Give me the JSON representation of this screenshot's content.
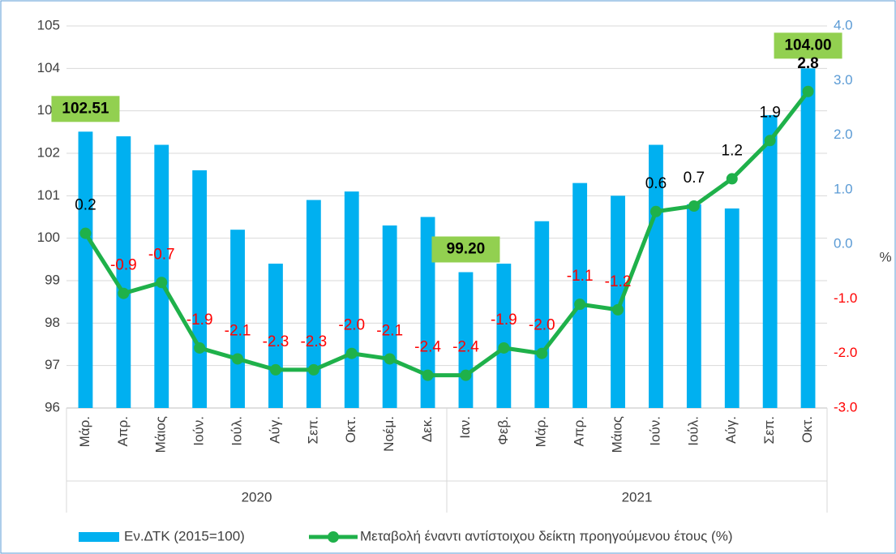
{
  "chart_data": {
    "type": "bar-line",
    "groups": [
      {
        "label": "2020",
        "categories": [
          "Μάρ.",
          "Απρ.",
          "Μάιος",
          "Ιούν.",
          "Ιούλ.",
          "Αύγ.",
          "Σεπ.",
          "Οκτ.",
          "Νοέμ.",
          "Δεκ."
        ]
      },
      {
        "label": "2021",
        "categories": [
          "Ιαν.",
          "Φεβ.",
          "Μάρ.",
          "Απρ.",
          "Μάιος",
          "Ιούν.",
          "Ιούλ.",
          "Αύγ.",
          "Σεπ.",
          "Οκτ."
        ]
      }
    ],
    "series": [
      {
        "name": "Εν.ΔΤΚ (2015=100)",
        "type": "bar",
        "color": "#00b0f0",
        "label_color": "#92d050",
        "values": [
          102.51,
          102.4,
          102.2,
          101.6,
          100.2,
          99.4,
          100.9,
          101.1,
          100.3,
          100.5,
          99.2,
          99.4,
          100.4,
          101.3,
          101.0,
          102.2,
          100.8,
          100.7,
          102.9,
          104.0
        ],
        "value_labels": [
          "102.51",
          null,
          null,
          null,
          null,
          null,
          null,
          null,
          null,
          null,
          "99.20",
          null,
          null,
          null,
          null,
          null,
          null,
          null,
          null,
          "104.00"
        ]
      },
      {
        "name": "Μεταβολή έναντι αντίστοιχου δείκτη προηγούμενου έτους (%)",
        "type": "line",
        "axis": "y2",
        "color": "#1fb14a",
        "values": [
          0.2,
          -0.9,
          -0.7,
          -1.9,
          -2.1,
          -2.3,
          -2.3,
          -2.0,
          -2.1,
          -2.4,
          -2.4,
          -1.9,
          -2.0,
          -1.1,
          -1.2,
          0.6,
          0.7,
          1.2,
          1.9,
          2.8
        ],
        "value_labels": [
          "0.2",
          "-0.9",
          "-0.7",
          "-1.9",
          "-2.1",
          "-2.3",
          "-2.3",
          "-2.0",
          "-2.1",
          "-2.4",
          "-2.4",
          "-1.9",
          "-2.0",
          "-1.1",
          "-1.2",
          "0.6",
          "0.7",
          "1.2",
          "1.9",
          "2.8"
        ]
      }
    ],
    "ylim": [
      96,
      105
    ],
    "yticks": [
      96,
      97,
      98,
      99,
      100,
      101,
      102,
      103,
      104,
      105
    ],
    "y2lim": [
      -3,
      4
    ],
    "y2ticks": [
      {
        "value": -3,
        "label": "-3.0"
      },
      {
        "value": -2,
        "label": "-2.0"
      },
      {
        "value": -1,
        "label": "-1.0"
      },
      {
        "value": 0,
        "label": "0.0"
      },
      {
        "value": 1,
        "label": "1.0"
      },
      {
        "value": 2,
        "label": "2.0"
      },
      {
        "value": 3,
        "label": "3.0"
      },
      {
        "value": 4,
        "label": "4.0"
      }
    ],
    "y2_label": "%",
    "grid": true,
    "legend": "bottom"
  }
}
